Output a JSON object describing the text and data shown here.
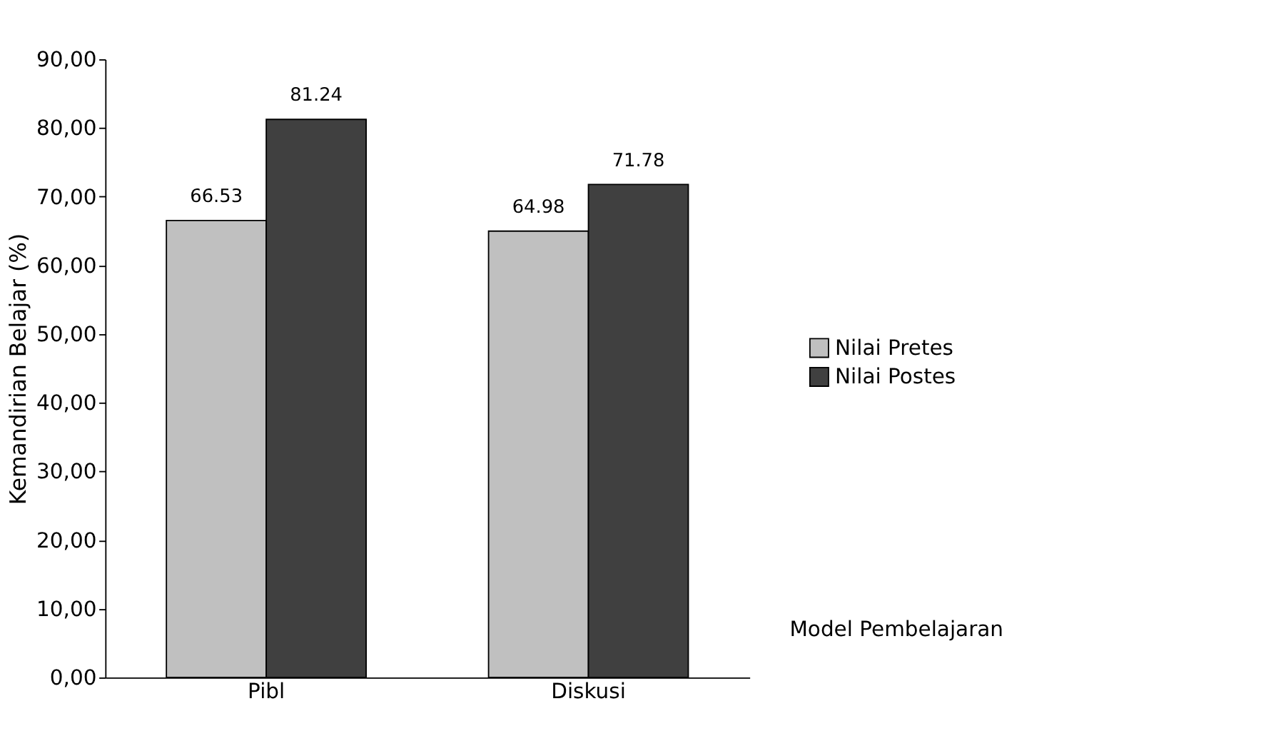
{
  "chart_data": {
    "type": "bar",
    "ylabel": "Kemandirian Belajar (%)",
    "xlabel": "Model Pembelajaran",
    "categories": [
      "Pibl",
      "Diskusi"
    ],
    "series": [
      {
        "name": "Nilai Pretes",
        "color": "#c0c0c0",
        "values": [
          66.53,
          64.98
        ]
      },
      {
        "name": "Nilai Postes",
        "color": "#404040",
        "values": [
          81.24,
          71.78
        ]
      }
    ],
    "ylim": [
      0,
      90
    ],
    "yticks": [
      {
        "value": 0,
        "label": "0,00"
      },
      {
        "value": 10,
        "label": "10,00"
      },
      {
        "value": 20,
        "label": "20,00"
      },
      {
        "value": 30,
        "label": "30,00"
      },
      {
        "value": 40,
        "label": "40,00"
      },
      {
        "value": 50,
        "label": "50,00"
      },
      {
        "value": 60,
        "label": "60,00"
      },
      {
        "value": 70,
        "label": "70,00"
      },
      {
        "value": 80,
        "label": "80,00"
      },
      {
        "value": 90,
        "label": "90,00"
      }
    ],
    "data_labels": true,
    "legend": "right",
    "grid": false
  }
}
